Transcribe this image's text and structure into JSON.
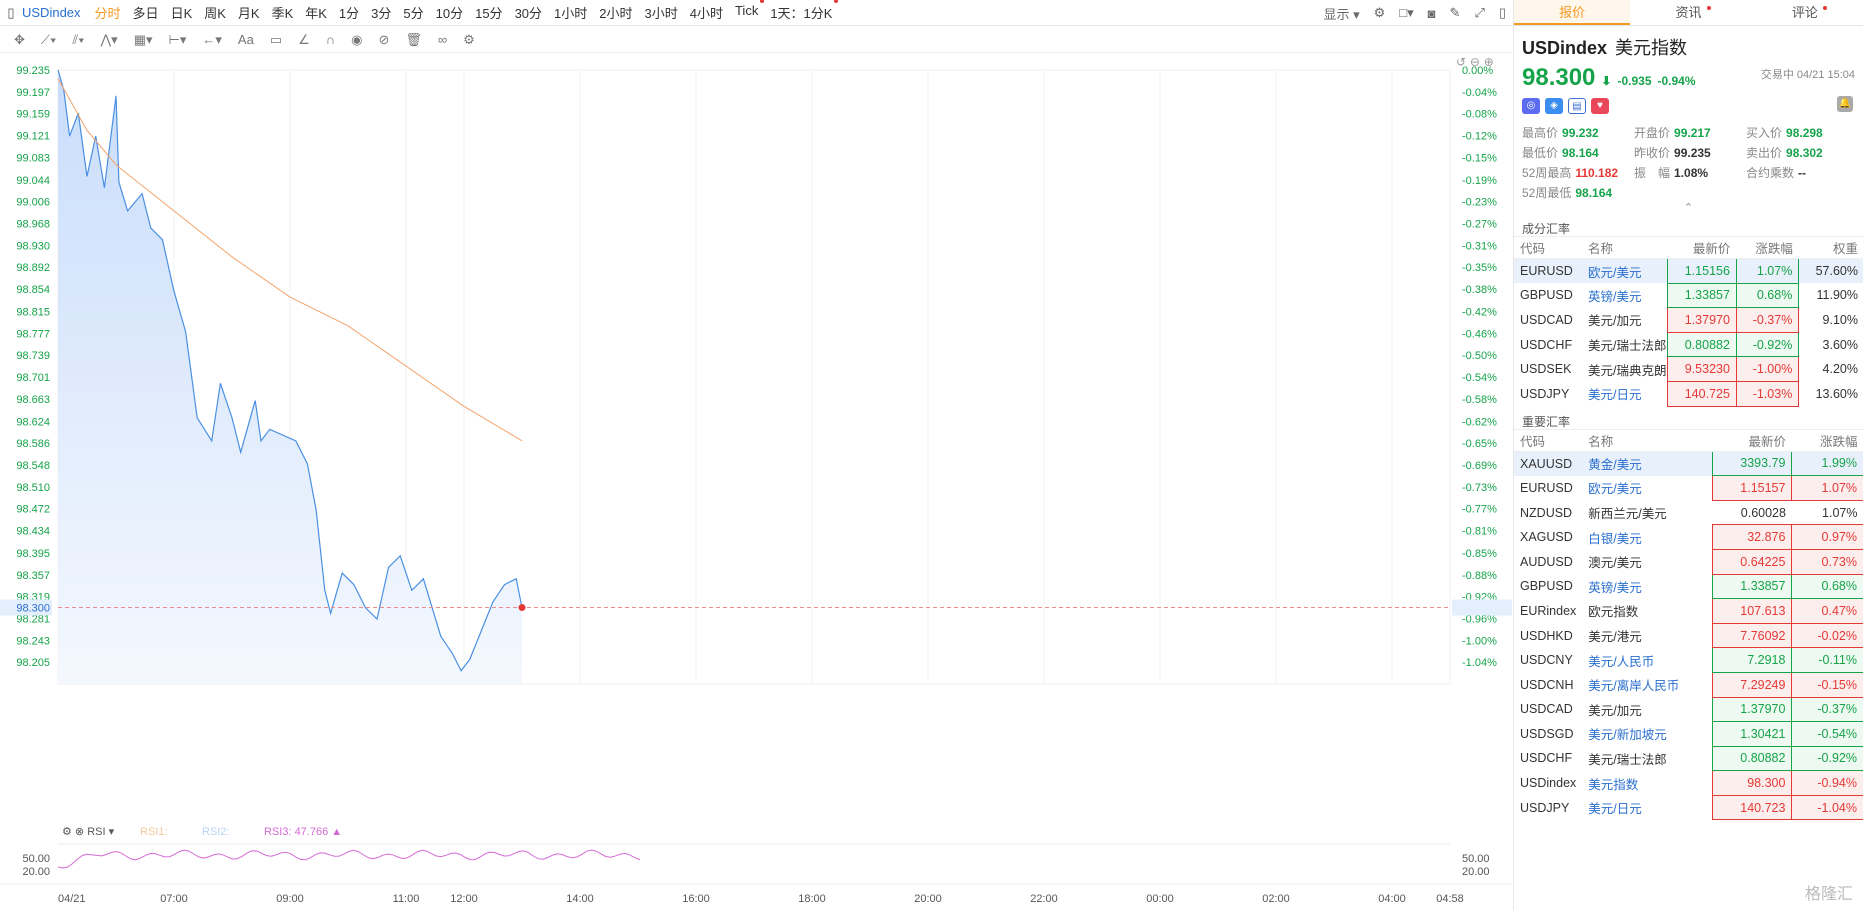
{
  "topbar": {
    "symbol": "USDindex",
    "timeframes": [
      {
        "label": "分时",
        "active": true
      },
      {
        "label": "多日"
      },
      {
        "label": "日K"
      },
      {
        "label": "周K"
      },
      {
        "label": "月K"
      },
      {
        "label": "季K"
      },
      {
        "label": "年K"
      },
      {
        "label": "1分"
      },
      {
        "label": "3分"
      },
      {
        "label": "5分"
      },
      {
        "label": "10分"
      },
      {
        "label": "15分"
      },
      {
        "label": "30分"
      },
      {
        "label": "1小时"
      },
      {
        "label": "2小时"
      },
      {
        "label": "3小时"
      },
      {
        "label": "4小时"
      },
      {
        "label": "Tick",
        "dot": true
      },
      {
        "label": "1天：1分K",
        "dot": true
      }
    ],
    "display_label": "显示"
  },
  "indicator": {
    "name": "RSI",
    "rsi1": "RSI1:",
    "rsi2": "RSI2:",
    "rsi3": "RSI3: 47.766",
    "rsi_levels": [
      "50.00",
      "20.00"
    ]
  },
  "chart_data": {
    "type": "line",
    "last_close": 99.235,
    "current": 98.3,
    "y_ticks": [
      "99.235",
      "99.197",
      "99.159",
      "99.121",
      "99.083",
      "99.044",
      "99.006",
      "98.968",
      "98.930",
      "98.892",
      "98.854",
      "98.815",
      "98.777",
      "98.739",
      "98.701",
      "98.663",
      "98.624",
      "98.586",
      "98.548",
      "98.510",
      "98.472",
      "98.434",
      "98.395",
      "98.357",
      "98.319",
      "98.281",
      "98.243",
      "98.205"
    ],
    "pct_ticks": [
      "0.00%",
      "-0.04%",
      "-0.08%",
      "-0.12%",
      "-0.15%",
      "-0.19%",
      "-0.23%",
      "-0.27%",
      "-0.31%",
      "-0.35%",
      "-0.38%",
      "-0.42%",
      "-0.46%",
      "-0.50%",
      "-0.54%",
      "-0.58%",
      "-0.62%",
      "-0.65%",
      "-0.69%",
      "-0.73%",
      "-0.77%",
      "-0.81%",
      "-0.85%",
      "-0.88%",
      "-0.92%",
      "-0.96%",
      "-1.00%",
      "-1.04%"
    ],
    "x_ticks": [
      "04/21",
      "07:00",
      "09:00",
      "11:00",
      "12:00",
      "14:00",
      "16:00",
      "18:00",
      "20:00",
      "22:00",
      "00:00",
      "02:00",
      "04:00",
      "04:58"
    ],
    "price_path": [
      [
        0,
        99.235
      ],
      [
        0.1,
        99.2
      ],
      [
        0.2,
        99.12
      ],
      [
        0.35,
        99.16
      ],
      [
        0.5,
        99.05
      ],
      [
        0.65,
        99.12
      ],
      [
        0.8,
        99.03
      ],
      [
        1.0,
        99.19
      ],
      [
        1.05,
        99.04
      ],
      [
        1.2,
        98.99
      ],
      [
        1.45,
        99.02
      ],
      [
        1.6,
        98.96
      ],
      [
        1.8,
        98.94
      ],
      [
        2.0,
        98.85
      ],
      [
        2.2,
        98.78
      ],
      [
        2.4,
        98.63
      ],
      [
        2.65,
        98.59
      ],
      [
        2.8,
        98.69
      ],
      [
        3.0,
        98.63
      ],
      [
        3.15,
        98.57
      ],
      [
        3.4,
        98.66
      ],
      [
        3.5,
        98.59
      ],
      [
        3.65,
        98.61
      ],
      [
        4.1,
        98.59
      ],
      [
        4.3,
        98.55
      ],
      [
        4.45,
        98.47
      ],
      [
        4.6,
        98.33
      ],
      [
        4.7,
        98.29
      ],
      [
        4.9,
        98.36
      ],
      [
        5.1,
        98.34
      ],
      [
        5.3,
        98.3
      ],
      [
        5.5,
        98.28
      ],
      [
        5.7,
        98.37
      ],
      [
        5.9,
        98.39
      ],
      [
        6.1,
        98.33
      ],
      [
        6.3,
        98.35
      ],
      [
        6.45,
        98.3
      ],
      [
        6.6,
        98.25
      ],
      [
        6.8,
        98.22
      ],
      [
        6.95,
        98.19
      ],
      [
        7.1,
        98.21
      ],
      [
        7.3,
        98.26
      ],
      [
        7.5,
        98.31
      ],
      [
        7.7,
        98.34
      ],
      [
        7.9,
        98.35
      ],
      [
        8.0,
        98.3
      ]
    ],
    "ma_path": [
      [
        0,
        99.22
      ],
      [
        0.5,
        99.13
      ],
      [
        1.0,
        99.07
      ],
      [
        2.0,
        98.99
      ],
      [
        3.0,
        98.91
      ],
      [
        4.0,
        98.84
      ],
      [
        5.0,
        98.79
      ],
      [
        6.0,
        98.72
      ],
      [
        7.0,
        98.65
      ],
      [
        8.0,
        98.59
      ]
    ]
  },
  "quote": {
    "tabs": [
      {
        "label": "报价",
        "active": true
      },
      {
        "label": "资讯",
        "dot": true
      },
      {
        "label": "评论",
        "dot": true
      }
    ],
    "symbol": "USDindex",
    "name": "美元指数",
    "price": "98.300",
    "arrow": "⬇",
    "change": "-0.935",
    "change_pct": "-0.94%",
    "status": "交易中 04/21 15:04",
    "stats": [
      {
        "k": "最高价",
        "v": "99.232",
        "c": "g"
      },
      {
        "k": "开盘价",
        "v": "99.217",
        "c": "g"
      },
      {
        "k": "买入价",
        "v": "98.298",
        "c": "g"
      },
      {
        "k": "最低价",
        "v": "98.164",
        "c": "g"
      },
      {
        "k": "昨收价",
        "v": "99.235",
        "c": "n"
      },
      {
        "k": "卖出价",
        "v": "98.302",
        "c": "g"
      },
      {
        "k": "52周最高",
        "v": "110.182",
        "c": "r"
      },
      {
        "k": "振　幅",
        "v": "1.08%",
        "c": "n"
      },
      {
        "k": "合约乘数",
        "v": "--",
        "c": "n"
      },
      {
        "k": "52周最低",
        "v": "98.164",
        "c": "g"
      },
      {
        "k": "",
        "v": "",
        "c": "n"
      },
      {
        "k": "",
        "v": "",
        "c": "n"
      }
    ]
  },
  "components": {
    "title": "成分汇率",
    "headers": [
      "代码",
      "名称",
      "最新价",
      "涨跌幅",
      "权重"
    ],
    "rows": [
      {
        "code": "EURUSD",
        "name": "欧元/美元",
        "price": "1.15156",
        "chg": "1.07%",
        "w": "57.60%",
        "c": "g",
        "sel": true
      },
      {
        "code": "GBPUSD",
        "name": "英镑/美元",
        "price": "1.33857",
        "chg": "0.68%",
        "w": "11.90%",
        "c": "g"
      },
      {
        "code": "USDCAD",
        "name": "美元/加元",
        "price": "1.37970",
        "chg": "-0.37%",
        "w": "9.10%",
        "c": "r",
        "plain": true
      },
      {
        "code": "USDCHF",
        "name": "美元/瑞士法郎",
        "price": "0.80882",
        "chg": "-0.92%",
        "w": "3.60%",
        "c": "g",
        "plain": true
      },
      {
        "code": "USDSEK",
        "name": "美元/瑞典克朗",
        "price": "9.53230",
        "chg": "-1.00%",
        "w": "4.20%",
        "c": "r",
        "plain": true
      },
      {
        "code": "USDJPY",
        "name": "美元/日元",
        "price": "140.725",
        "chg": "-1.03%",
        "w": "13.60%",
        "c": "r"
      }
    ]
  },
  "important": {
    "title": "重要汇率",
    "headers": [
      "代码",
      "名称",
      "最新价",
      "涨跌幅"
    ],
    "rows": [
      {
        "code": "XAUUSD",
        "name": "黄金/美元",
        "price": "3393.79",
        "chg": "1.99%",
        "c": "g",
        "sel": true
      },
      {
        "code": "EURUSD",
        "name": "欧元/美元",
        "price": "1.15157",
        "chg": "1.07%",
        "c": "r"
      },
      {
        "code": "NZDUSD",
        "name": "新西兰元/美元",
        "price": "0.60028",
        "chg": "1.07%",
        "c": "none",
        "plain": true
      },
      {
        "code": "XAGUSD",
        "name": "白银/美元",
        "price": "32.876",
        "chg": "0.97%",
        "c": "r"
      },
      {
        "code": "AUDUSD",
        "name": "澳元/美元",
        "price": "0.64225",
        "chg": "0.73%",
        "c": "r",
        "plain": true
      },
      {
        "code": "GBPUSD",
        "name": "英镑/美元",
        "price": "1.33857",
        "chg": "0.68%",
        "c": "g"
      },
      {
        "code": "EURindex",
        "name": "欧元指数",
        "price": "107.613",
        "chg": "0.47%",
        "c": "r",
        "plain": true
      },
      {
        "code": "USDHKD",
        "name": "美元/港元",
        "price": "7.76092",
        "chg": "-0.02%",
        "c": "r",
        "plain": true
      },
      {
        "code": "USDCNY",
        "name": "美元/人民币",
        "price": "7.2918",
        "chg": "-0.11%",
        "c": "g"
      },
      {
        "code": "USDCNH",
        "name": "美元/离岸人民币",
        "price": "7.29249",
        "chg": "-0.15%",
        "c": "r"
      },
      {
        "code": "USDCAD",
        "name": "美元/加元",
        "price": "1.37970",
        "chg": "-0.37%",
        "c": "g",
        "plain": true
      },
      {
        "code": "USDSGD",
        "name": "美元/新加坡元",
        "price": "1.30421",
        "chg": "-0.54%",
        "c": "g"
      },
      {
        "code": "USDCHF",
        "name": "美元/瑞士法郎",
        "price": "0.80882",
        "chg": "-0.92%",
        "c": "g",
        "plain": true
      },
      {
        "code": "USDindex",
        "name": "美元指数",
        "price": "98.300",
        "chg": "-0.94%",
        "c": "r"
      },
      {
        "code": "USDJPY",
        "name": "美元/日元",
        "price": "140.723",
        "chg": "-1.04%",
        "c": "r"
      }
    ]
  },
  "watermark": "格隆汇"
}
